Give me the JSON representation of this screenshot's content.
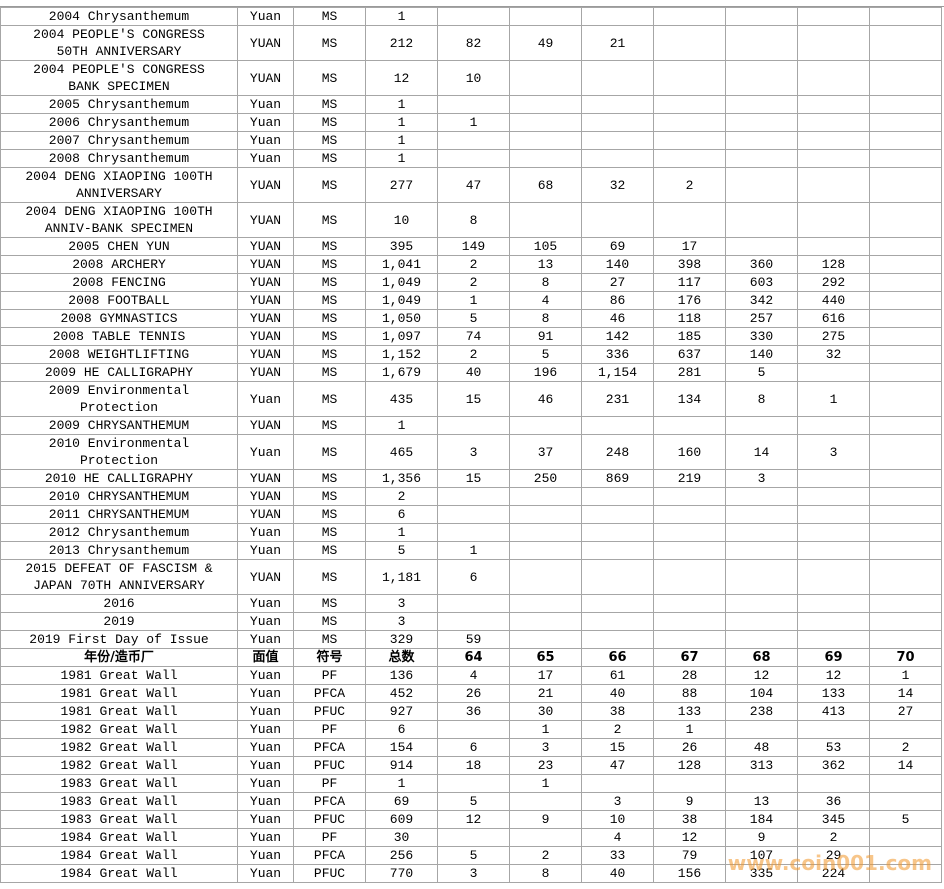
{
  "table": {
    "upper_rows": [
      [
        "2004 Chrysanthemum",
        "Yuan",
        "MS",
        "1"
      ],
      [
        "2004 PEOPLE'S CONGRESS 50TH ANNIVERSARY",
        "YUAN",
        "MS",
        "212",
        "82",
        "49",
        "21"
      ],
      [
        "2004 PEOPLE'S CONGRESS BANK SPECIMEN",
        "YUAN",
        "MS",
        "12",
        "10"
      ],
      [
        "2005 Chrysanthemum",
        "Yuan",
        "MS",
        "1"
      ],
      [
        "2006 Chrysanthemum",
        "Yuan",
        "MS",
        "1",
        "1"
      ],
      [
        "2007 Chrysanthemum",
        "Yuan",
        "MS",
        "1"
      ],
      [
        "2008 Chrysanthemum",
        "Yuan",
        "MS",
        "1"
      ],
      [
        "2004 DENG XIAOPING 100TH ANNIVERSARY",
        "YUAN",
        "MS",
        "277",
        "47",
        "68",
        "32",
        "2"
      ],
      [
        "2004 DENG XIAOPING 100TH ANNIV-BANK SPECIMEN",
        "YUAN",
        "MS",
        "10",
        "8"
      ],
      [
        "2005 CHEN YUN",
        "YUAN",
        "MS",
        "395",
        "149",
        "105",
        "69",
        "17"
      ],
      [
        "2008 ARCHERY",
        "YUAN",
        "MS",
        "1,041",
        "2",
        "13",
        "140",
        "398",
        "360",
        "128"
      ],
      [
        "2008 FENCING",
        "YUAN",
        "MS",
        "1,049",
        "2",
        "8",
        "27",
        "117",
        "603",
        "292"
      ],
      [
        "2008 FOOTBALL",
        "YUAN",
        "MS",
        "1,049",
        "1",
        "4",
        "86",
        "176",
        "342",
        "440"
      ],
      [
        "2008 GYMNASTICS",
        "YUAN",
        "MS",
        "1,050",
        "5",
        "8",
        "46",
        "118",
        "257",
        "616"
      ],
      [
        "2008 TABLE TENNIS",
        "YUAN",
        "MS",
        "1,097",
        "74",
        "91",
        "142",
        "185",
        "330",
        "275"
      ],
      [
        "2008 WEIGHTLIFTING",
        "YUAN",
        "MS",
        "1,152",
        "2",
        "5",
        "336",
        "637",
        "140",
        "32"
      ],
      [
        "2009 HE CALLIGRAPHY",
        "YUAN",
        "MS",
        "1,679",
        "40",
        "196",
        "1,154",
        "281",
        "5"
      ],
      [
        "2009 Environmental Protection",
        "Yuan",
        "MS",
        "435",
        "15",
        "46",
        "231",
        "134",
        "8",
        "1"
      ],
      [
        "2009 CHRYSANTHEMUM",
        "YUAN",
        "MS",
        "1"
      ],
      [
        "2010 Environmental Protection",
        "Yuan",
        "MS",
        "465",
        "3",
        "37",
        "248",
        "160",
        "14",
        "3"
      ],
      [
        "2010 HE CALLIGRAPHY",
        "YUAN",
        "MS",
        "1,356",
        "15",
        "250",
        "869",
        "219",
        "3"
      ],
      [
        "2010 CHRYSANTHEMUM",
        "YUAN",
        "MS",
        "2"
      ],
      [
        "2011 CHRYSANTHEMUM",
        "YUAN",
        "MS",
        "6"
      ],
      [
        "2012 Chrysanthemum",
        "Yuan",
        "MS",
        "1"
      ],
      [
        "2013 Chrysanthemum",
        "Yuan",
        "MS",
        "5",
        "1"
      ],
      [
        "2015 DEFEAT OF FASCISM & JAPAN 70TH ANNIVERSARY",
        "YUAN",
        "MS",
        "1,181",
        "6"
      ],
      [
        "2016",
        "Yuan",
        "MS",
        "3"
      ],
      [
        "2019",
        "Yuan",
        "MS",
        "3"
      ],
      [
        "2019 First Day of Issue",
        "Yuan",
        "MS",
        "329",
        "59"
      ]
    ],
    "header": [
      "年份/造币厂",
      "面值",
      "符号",
      "总数",
      "64",
      "65",
      "66",
      "67",
      "68",
      "69",
      "70"
    ],
    "lower_rows": [
      [
        "1981 Great Wall",
        "Yuan",
        "PF",
        "136",
        "4",
        "17",
        "61",
        "28",
        "12",
        "12",
        "1"
      ],
      [
        "1981 Great Wall",
        "Yuan",
        "PFCA",
        "452",
        "26",
        "21",
        "40",
        "88",
        "104",
        "133",
        "14"
      ],
      [
        "1981 Great Wall",
        "Yuan",
        "PFUC",
        "927",
        "36",
        "30",
        "38",
        "133",
        "238",
        "413",
        "27"
      ],
      [
        "1982 Great Wall",
        "Yuan",
        "PF",
        "6",
        null,
        "1",
        "2",
        "1"
      ],
      [
        "1982 Great Wall",
        "Yuan",
        "PFCA",
        "154",
        "6",
        "3",
        "15",
        "26",
        "48",
        "53",
        "2"
      ],
      [
        "1982 Great Wall",
        "Yuan",
        "PFUC",
        "914",
        "18",
        "23",
        "47",
        "128",
        "313",
        "362",
        "14"
      ],
      [
        "1983 Great Wall",
        "Yuan",
        "PF",
        "1",
        null,
        "1"
      ],
      [
        "1983 Great Wall",
        "Yuan",
        "PFCA",
        "69",
        "5",
        null,
        "3",
        "9",
        "13",
        "36"
      ],
      [
        "1983 Great Wall",
        "Yuan",
        "PFUC",
        "609",
        "12",
        "9",
        "10",
        "38",
        "184",
        "345",
        "5"
      ],
      [
        "1984 Great Wall",
        "Yuan",
        "PF",
        "30",
        null,
        null,
        "4",
        "12",
        "9",
        "2"
      ],
      [
        "1984 Great Wall",
        "Yuan",
        "PFCA",
        "256",
        "5",
        "2",
        "33",
        "79",
        "107",
        "29"
      ],
      [
        "1984 Great Wall",
        "Yuan",
        "PFUC",
        "770",
        "3",
        "8",
        "40",
        "156",
        "335",
        "224"
      ]
    ]
  },
  "watermark": "www.coin001.com"
}
